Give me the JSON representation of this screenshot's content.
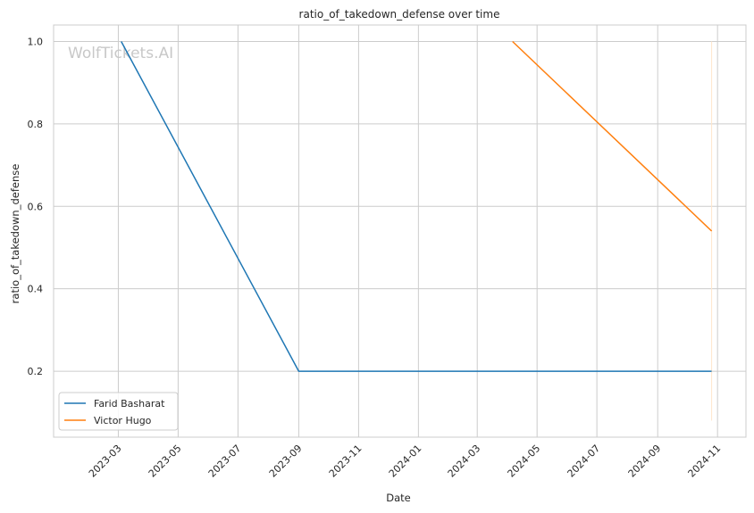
{
  "chart_data": {
    "type": "line",
    "title": "ratio_of_takedown_defense over time",
    "xlabel": "Date",
    "ylabel": "ratio_of_takedown_defense",
    "watermark": "WolfTickets.AI",
    "x_ticks": [
      "2023-03",
      "2023-05",
      "2023-07",
      "2023-09",
      "2023-11",
      "2024-01",
      "2024-03",
      "2024-05",
      "2024-07",
      "2024-09",
      "2024-11"
    ],
    "y_ticks": [
      "0.2",
      "0.4",
      "0.6",
      "0.8",
      "1.0"
    ],
    "xlim": [
      "2022-12-25",
      "2024-11-30"
    ],
    "ylim": [
      0.04,
      1.04
    ],
    "grid": true,
    "legend_position": "lower-left",
    "series": [
      {
        "name": "Farid Basharat",
        "color": "#1f77b4",
        "points": [
          {
            "x": "2023-03-04",
            "y": 1.0
          },
          {
            "x": "2023-09-01",
            "y": 0.2
          },
          {
            "x": "2024-10-26",
            "y": 0.2
          }
        ]
      },
      {
        "name": "Victor Hugo",
        "color": "#ff7f0e",
        "points": [
          {
            "x": "2024-04-06",
            "y": 1.0
          },
          {
            "x": "2024-10-26",
            "y": 0.54
          }
        ]
      }
    ]
  }
}
